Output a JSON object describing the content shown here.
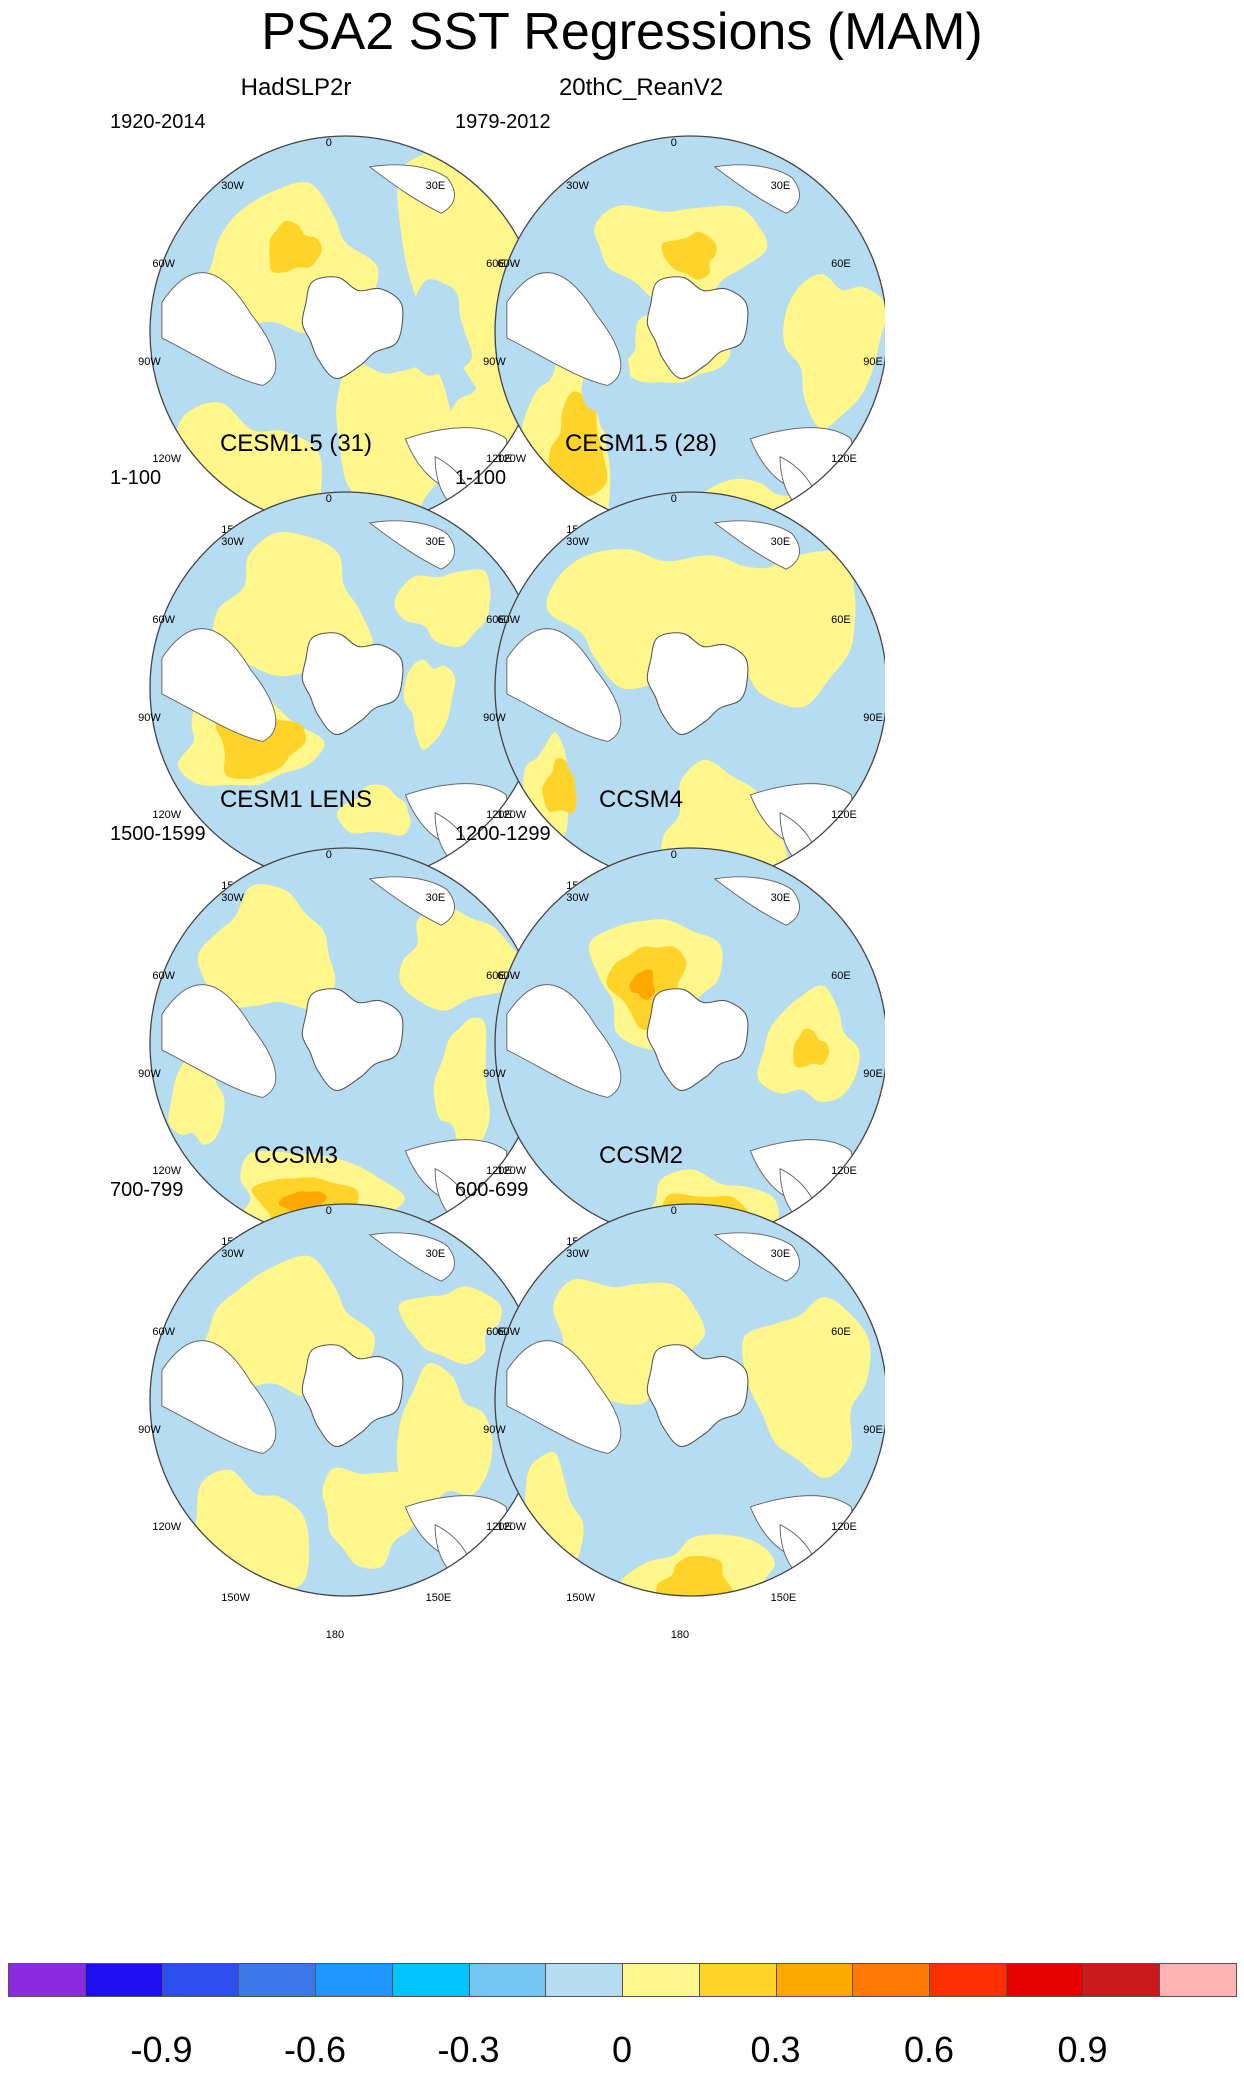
{
  "title": "PSA2 SST Regressions (MAM)",
  "chart_data": {
    "type": "heatmap",
    "projection": "south-polar-stereographic",
    "variable": "SST regression onto PSA2",
    "season": "MAM",
    "longitude_labels": [
      "0",
      "30E",
      "60E",
      "90E",
      "120E",
      "150E",
      "180",
      "150W",
      "120W",
      "90W",
      "60W",
      "30W"
    ],
    "panels": [
      {
        "title": "HadSLP2r",
        "period": "1920-2014"
      },
      {
        "title": "20thC_ReanV2",
        "period": "1979-2012"
      },
      {
        "title": "CESM1.5 (31)",
        "period": "1-100"
      },
      {
        "title": "CESM1.5 (28)",
        "period": "1-100"
      },
      {
        "title": "CESM1 LENS",
        "period": "1500-1599"
      },
      {
        "title": "CCSM4",
        "period": "1200-1299"
      },
      {
        "title": "CCSM3",
        "period": "700-799"
      },
      {
        "title": "CCSM2",
        "period": "600-699"
      }
    ],
    "colorbar": {
      "levels": [
        -1.05,
        -0.9,
        -0.75,
        -0.6,
        -0.45,
        -0.3,
        -0.15,
        0,
        0.15,
        0.3,
        0.45,
        0.6,
        0.75,
        0.9,
        1.05
      ],
      "tick_labels": [
        "-0.9",
        "-0.6",
        "-0.3",
        "0",
        "0.3",
        "0.6",
        "0.9"
      ],
      "tick_values": [
        -0.9,
        -0.6,
        -0.3,
        0,
        0.3,
        0.6,
        0.9
      ],
      "colors": [
        "#8a2be2",
        "#1e0ff0",
        "#2e4ff0",
        "#3a78ea",
        "#1e96ff",
        "#00c4ff",
        "#74c6f2",
        "#b6dcf2",
        "#fff68c",
        "#ffd42a",
        "#ffa800",
        "#ff7800",
        "#ff3000",
        "#e60000",
        "#cc1a1a",
        "#ffb4b4"
      ]
    }
  }
}
